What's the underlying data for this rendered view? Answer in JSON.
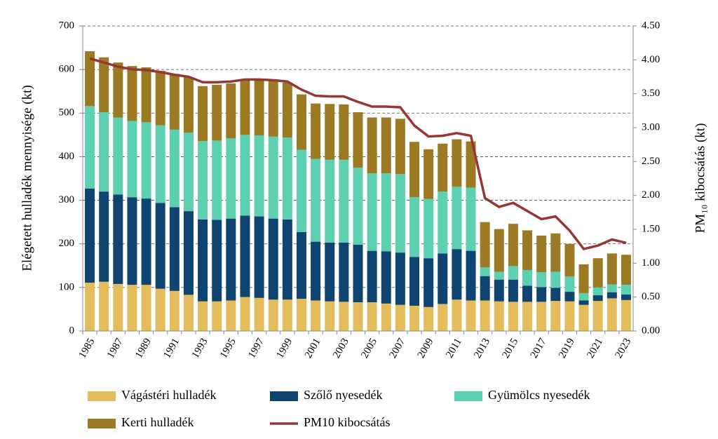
{
  "chart_data": {
    "type": "bar-line",
    "categories": [
      "1985",
      null,
      "1987",
      null,
      "1989",
      null,
      "1991",
      null,
      "1993",
      null,
      "1995",
      null,
      "1997",
      null,
      "1999",
      null,
      "2001",
      null,
      "2003",
      null,
      "2005",
      null,
      "2007",
      null,
      "2009",
      null,
      "2011",
      null,
      "2013",
      null,
      "2015",
      null,
      "2017",
      null,
      "2019",
      null,
      "2021",
      null,
      "2023"
    ],
    "ylabel": "Elégetett hulladék mennyisége (kt)",
    "y2label": "PM₁₀ kibocsátás (kt)",
    "ylim": [
      0,
      700
    ],
    "yticks": [
      0,
      100,
      200,
      300,
      400,
      500,
      600,
      700
    ],
    "y2lim": [
      0,
      4.5
    ],
    "y2ticks": [
      {
        "value": 0,
        "label": "0.00"
      },
      {
        "value": 0.5,
        "label": "0.50"
      },
      {
        "value": 1,
        "label": "1.00"
      },
      {
        "value": 1.5,
        "label": "1.50"
      },
      {
        "value": 2,
        "label": "2.00"
      },
      {
        "value": 2.5,
        "label": "2.50"
      },
      {
        "value": 3,
        "label": "3.00"
      },
      {
        "value": 3.5,
        "label": "3.50"
      },
      {
        "value": 4,
        "label": "4.00"
      },
      {
        "value": 4.5,
        "label": "4.50"
      }
    ],
    "grid": true,
    "stacked": true,
    "legend": "bottom",
    "series": [
      {
        "name": "Vágástéri hulladék",
        "color": "#e3bd5b",
        "values": [
          111,
          113,
          108,
          106,
          106,
          97,
          92,
          83,
          68,
          68,
          70,
          78,
          76,
          72,
          72,
          74,
          70,
          68,
          67,
          66,
          66,
          63,
          60,
          58,
          55,
          62,
          72,
          70,
          70,
          68,
          67,
          67,
          67,
          69,
          68,
          60,
          69,
          75,
          71
        ]
      },
      {
        "name": "Szőlő nyesedék",
        "color": "#0e446f",
        "values": [
          216,
          207,
          205,
          201,
          198,
          197,
          192,
          192,
          188,
          187,
          188,
          187,
          187,
          186,
          184,
          153,
          135,
          135,
          136,
          132,
          118,
          120,
          120,
          112,
          112,
          116,
          116,
          114,
          56,
          50,
          51,
          37,
          34,
          30,
          22,
          10,
          13,
          14,
          13
        ]
      },
      {
        "name": "Gyümölcs nyesedék",
        "color": "#5dd0b1",
        "values": [
          189,
          182,
          177,
          175,
          175,
          178,
          178,
          180,
          180,
          182,
          184,
          185,
          186,
          188,
          188,
          189,
          190,
          190,
          190,
          177,
          178,
          179,
          180,
          137,
          136,
          142,
          143,
          145,
          20,
          18,
          31,
          36,
          34,
          37,
          35,
          17,
          18,
          18,
          22
        ]
      },
      {
        "name": "Kerti hulladék",
        "color": "#9c7a23",
        "values": [
          126,
          126,
          126,
          126,
          126,
          125,
          128,
          127,
          126,
          128,
          126,
          128,
          129,
          129,
          126,
          127,
          127,
          128,
          127,
          127,
          128,
          128,
          127,
          127,
          114,
          110,
          109,
          106,
          104,
          98,
          97,
          91,
          84,
          88,
          75,
          66,
          67,
          71,
          69
        ]
      },
      {
        "name": "PM10 kibocsátás",
        "color": "#953735",
        "axis": "y2",
        "type": "line",
        "values": [
          4.02,
          3.96,
          3.9,
          3.86,
          3.85,
          3.82,
          3.78,
          3.75,
          3.67,
          3.67,
          3.68,
          3.71,
          3.71,
          3.7,
          3.68,
          3.56,
          3.47,
          3.46,
          3.46,
          3.38,
          3.31,
          3.31,
          3.3,
          3.03,
          2.87,
          2.88,
          2.92,
          2.88,
          1.96,
          1.83,
          1.89,
          1.77,
          1.65,
          1.69,
          1.48,
          1.21,
          1.26,
          1.35,
          1.3
        ]
      }
    ]
  }
}
